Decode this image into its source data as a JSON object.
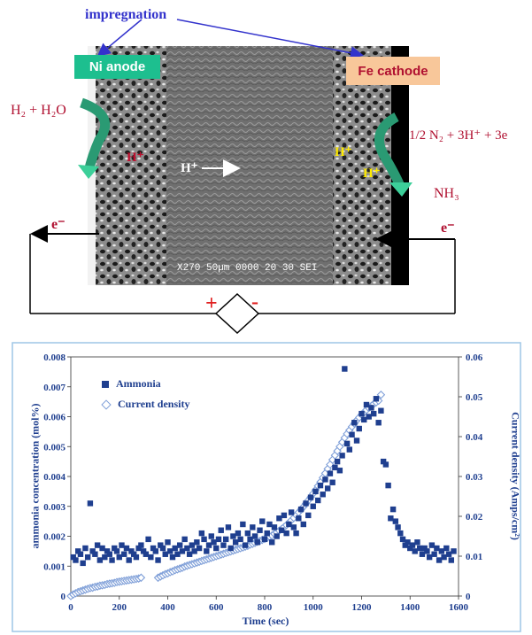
{
  "diagram": {
    "impregnation": "impregnation",
    "anode_label": "Ni anode",
    "cathode_label": "Fe cathode",
    "anode_reactants": "H₂ + H₂O",
    "cathode_reactants": "1/2 N₂ + 3H⁺ + 3e",
    "product": "NH₃",
    "proton_left": "H⁺",
    "proton_middle": "H⁺",
    "proton_right_1": "H⁺",
    "proton_right_2": "H⁺",
    "electron_left": "e⁻",
    "electron_right": "e⁻",
    "plus_sign": "+",
    "minus_sign": "-",
    "sem_caption": "X270   50µm  0000  20 30 SEI",
    "colors": {
      "anode_box": "#1dbf8f",
      "cathode_box": "#f8c79a",
      "impregnation": "#3333cc",
      "reaction_text": "#b01030"
    }
  },
  "chart_data": {
    "type": "scatter",
    "xlabel": "Time (sec)",
    "ylabel_left": "ammonia concentration (mol%)",
    "ylabel_right": "Current density  (Amps/cm²)",
    "xlim": [
      0,
      1600
    ],
    "ylim_left": [
      0,
      0.008
    ],
    "ylim_right": [
      0,
      0.06
    ],
    "x_ticks": [
      "0",
      "200",
      "400",
      "600",
      "800",
      "1000",
      "1200",
      "1400",
      "1600"
    ],
    "y_ticks_left": [
      "0",
      "0.001",
      "0.002",
      "0.003",
      "0.004",
      "0.005",
      "0.006",
      "0.007",
      "0.008"
    ],
    "y_ticks_right": [
      "0",
      "0.01",
      "0.02",
      "0.03",
      "0.04",
      "0.05",
      "0.06"
    ],
    "legend": [
      "Ammonia",
      "Current density"
    ],
    "series": [
      {
        "name": "Ammonia",
        "axis": "left",
        "marker": "square",
        "color": "#1f3f8f",
        "x": [
          10,
          20,
          30,
          40,
          50,
          60,
          70,
          80,
          90,
          100,
          110,
          120,
          130,
          140,
          150,
          160,
          170,
          180,
          190,
          200,
          210,
          220,
          230,
          240,
          250,
          260,
          270,
          280,
          290,
          300,
          310,
          320,
          330,
          340,
          350,
          360,
          370,
          380,
          390,
          400,
          410,
          420,
          430,
          440,
          450,
          460,
          470,
          480,
          490,
          500,
          510,
          520,
          530,
          540,
          550,
          560,
          570,
          580,
          590,
          600,
          610,
          620,
          630,
          640,
          650,
          660,
          670,
          680,
          690,
          700,
          710,
          720,
          730,
          740,
          750,
          760,
          770,
          780,
          790,
          800,
          810,
          820,
          830,
          840,
          850,
          860,
          870,
          880,
          890,
          900,
          910,
          920,
          930,
          940,
          950,
          960,
          970,
          980,
          990,
          1000,
          1010,
          1020,
          1030,
          1040,
          1050,
          1060,
          1070,
          1080,
          1090,
          1100,
          1110,
          1120,
          1130,
          1140,
          1150,
          1160,
          1170,
          1180,
          1190,
          1200,
          1210,
          1220,
          1230,
          1240,
          1250,
          1260,
          1270,
          1280,
          1290,
          1300,
          1310,
          1320,
          1330,
          1340,
          1350,
          1360,
          1370,
          1380,
          1390,
          1400,
          1410,
          1420,
          1430,
          1440,
          1450,
          1460,
          1470,
          1480,
          1490,
          1500,
          1510,
          1520,
          1530,
          1540,
          1550,
          1560,
          1570,
          1580
        ],
        "y": [
          0.0013,
          0.0012,
          0.0015,
          0.0014,
          0.0011,
          0.0016,
          0.0013,
          0.0031,
          0.0015,
          0.0014,
          0.0017,
          0.0012,
          0.0016,
          0.0013,
          0.0015,
          0.0014,
          0.0012,
          0.0016,
          0.0015,
          0.0013,
          0.0017,
          0.0014,
          0.0016,
          0.0012,
          0.0015,
          0.0014,
          0.0013,
          0.0016,
          0.0017,
          0.0015,
          0.0014,
          0.0019,
          0.0013,
          0.0016,
          0.0015,
          0.0012,
          0.0017,
          0.0016,
          0.0014,
          0.0018,
          0.0015,
          0.0013,
          0.0016,
          0.0014,
          0.0017,
          0.0015,
          0.0019,
          0.0016,
          0.0014,
          0.0017,
          0.0015,
          0.0018,
          0.0016,
          0.0021,
          0.0019,
          0.0015,
          0.0017,
          0.002,
          0.0018,
          0.0016,
          0.0019,
          0.0022,
          0.0017,
          0.0019,
          0.0023,
          0.0016,
          0.002,
          0.0018,
          0.0021,
          0.0019,
          0.0024,
          0.0017,
          0.0021,
          0.0019,
          0.0023,
          0.002,
          0.0018,
          0.0022,
          0.0025,
          0.0019,
          0.0021,
          0.0024,
          0.0018,
          0.0023,
          0.002,
          0.0026,
          0.0022,
          0.0027,
          0.0021,
          0.0024,
          0.0028,
          0.0023,
          0.0021,
          0.0026,
          0.0029,
          0.0024,
          0.0031,
          0.0027,
          0.0033,
          0.003,
          0.0035,
          0.0032,
          0.0037,
          0.0034,
          0.0039,
          0.0036,
          0.0041,
          0.0038,
          0.0043,
          0.0045,
          0.0042,
          0.0047,
          0.0076,
          0.0051,
          0.0049,
          0.0054,
          0.0058,
          0.0052,
          0.0056,
          0.0061,
          0.0059,
          0.0064,
          0.006,
          0.0063,
          0.0061,
          0.0066,
          0.0058,
          0.0062,
          0.0045,
          0.0044,
          0.0037,
          0.0026,
          0.0029,
          0.0025,
          0.0023,
          0.0021,
          0.0019,
          0.0017,
          0.0018,
          0.0016,
          0.0017,
          0.0015,
          0.0018,
          0.0016,
          0.0014,
          0.0016,
          0.0015,
          0.0013,
          0.0017,
          0.0014,
          0.0016,
          0.0012,
          0.0015,
          0.0013,
          0.0016,
          0.0014,
          0.0012,
          0.0015
        ]
      },
      {
        "name": "Current density",
        "axis": "right",
        "marker": "diamond-open",
        "color": "#7f9fd8",
        "x": [
          0,
          10,
          20,
          30,
          40,
          50,
          60,
          70,
          80,
          90,
          100,
          110,
          120,
          130,
          140,
          150,
          160,
          170,
          180,
          190,
          200,
          210,
          220,
          230,
          240,
          250,
          260,
          270,
          280,
          290,
          360,
          370,
          380,
          390,
          400,
          410,
          420,
          430,
          440,
          450,
          460,
          470,
          480,
          490,
          500,
          510,
          520,
          530,
          540,
          550,
          560,
          570,
          580,
          590,
          600,
          610,
          620,
          630,
          640,
          650,
          660,
          670,
          680,
          690,
          700,
          710,
          720,
          730,
          740,
          750,
          760,
          770,
          780,
          790,
          800,
          810,
          820,
          830,
          840,
          850,
          860,
          870,
          880,
          890,
          900,
          910,
          920,
          930,
          940,
          950,
          960,
          970,
          980,
          990,
          1000,
          1010,
          1020,
          1030,
          1040,
          1050,
          1060,
          1070,
          1080,
          1090,
          1100,
          1110,
          1120,
          1130,
          1140,
          1150,
          1160,
          1170,
          1180,
          1190,
          1200,
          1210,
          1220,
          1230,
          1240,
          1250,
          1260,
          1270,
          1280
        ],
        "y": [
          0,
          0.0004,
          0.0007,
          0.001,
          0.0012,
          0.0014,
          0.0016,
          0.0018,
          0.002,
          0.0021,
          0.0023,
          0.0024,
          0.0026,
          0.0027,
          0.0028,
          0.003,
          0.0031,
          0.0032,
          0.0033,
          0.0035,
          0.0036,
          0.0037,
          0.0038,
          0.0039,
          0.004,
          0.0041,
          0.0042,
          0.0043,
          0.0044,
          0.0046,
          0.0046,
          0.0049,
          0.0052,
          0.0055,
          0.0057,
          0.006,
          0.0062,
          0.0065,
          0.0067,
          0.0069,
          0.0071,
          0.0074,
          0.0076,
          0.0078,
          0.008,
          0.0082,
          0.0084,
          0.0086,
          0.0088,
          0.009,
          0.0092,
          0.0094,
          0.0096,
          0.0098,
          0.01,
          0.0102,
          0.0104,
          0.0106,
          0.0108,
          0.011,
          0.0112,
          0.0114,
          0.0116,
          0.0118,
          0.012,
          0.0122,
          0.0124,
          0.0126,
          0.0129,
          0.0131,
          0.0133,
          0.0136,
          0.0138,
          0.0141,
          0.0143,
          0.0146,
          0.0149,
          0.0152,
          0.0156,
          0.016,
          0.0164,
          0.0168,
          0.0173,
          0.0178,
          0.0184,
          0.019,
          0.0196,
          0.0203,
          0.021,
          0.0217,
          0.0224,
          0.0232,
          0.024,
          0.0248,
          0.0257,
          0.0266,
          0.0276,
          0.0286,
          0.0297,
          0.0308,
          0.0319,
          0.033,
          0.0342,
          0.0353,
          0.0364,
          0.0375,
          0.0386,
          0.0397,
          0.0407,
          0.0416,
          0.0425,
          0.0433,
          0.0441,
          0.0448,
          0.0455,
          0.0461,
          0.0467,
          0.0472,
          0.0477,
          0.0482,
          0.0486,
          0.049,
          0.0505
        ]
      }
    ]
  }
}
